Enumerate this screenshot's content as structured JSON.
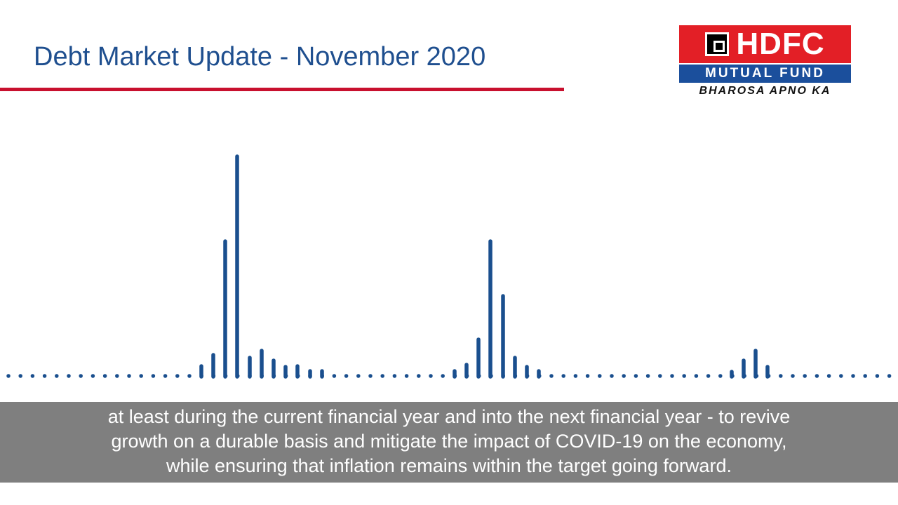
{
  "header": {
    "title": "Debt Market Update - November 2020"
  },
  "logo": {
    "name": "HDFC",
    "subtitle": "MUTUAL FUND",
    "tagline": "BHAROSA APNO KA"
  },
  "caption": {
    "lines": [
      "at least during the current financial year and into the next financial year - to revive",
      "growth on a durable basis and mitigate the impact of COVID-19 on the economy,",
      "while ensuring that inflation remains within the target going forward."
    ]
  }
}
